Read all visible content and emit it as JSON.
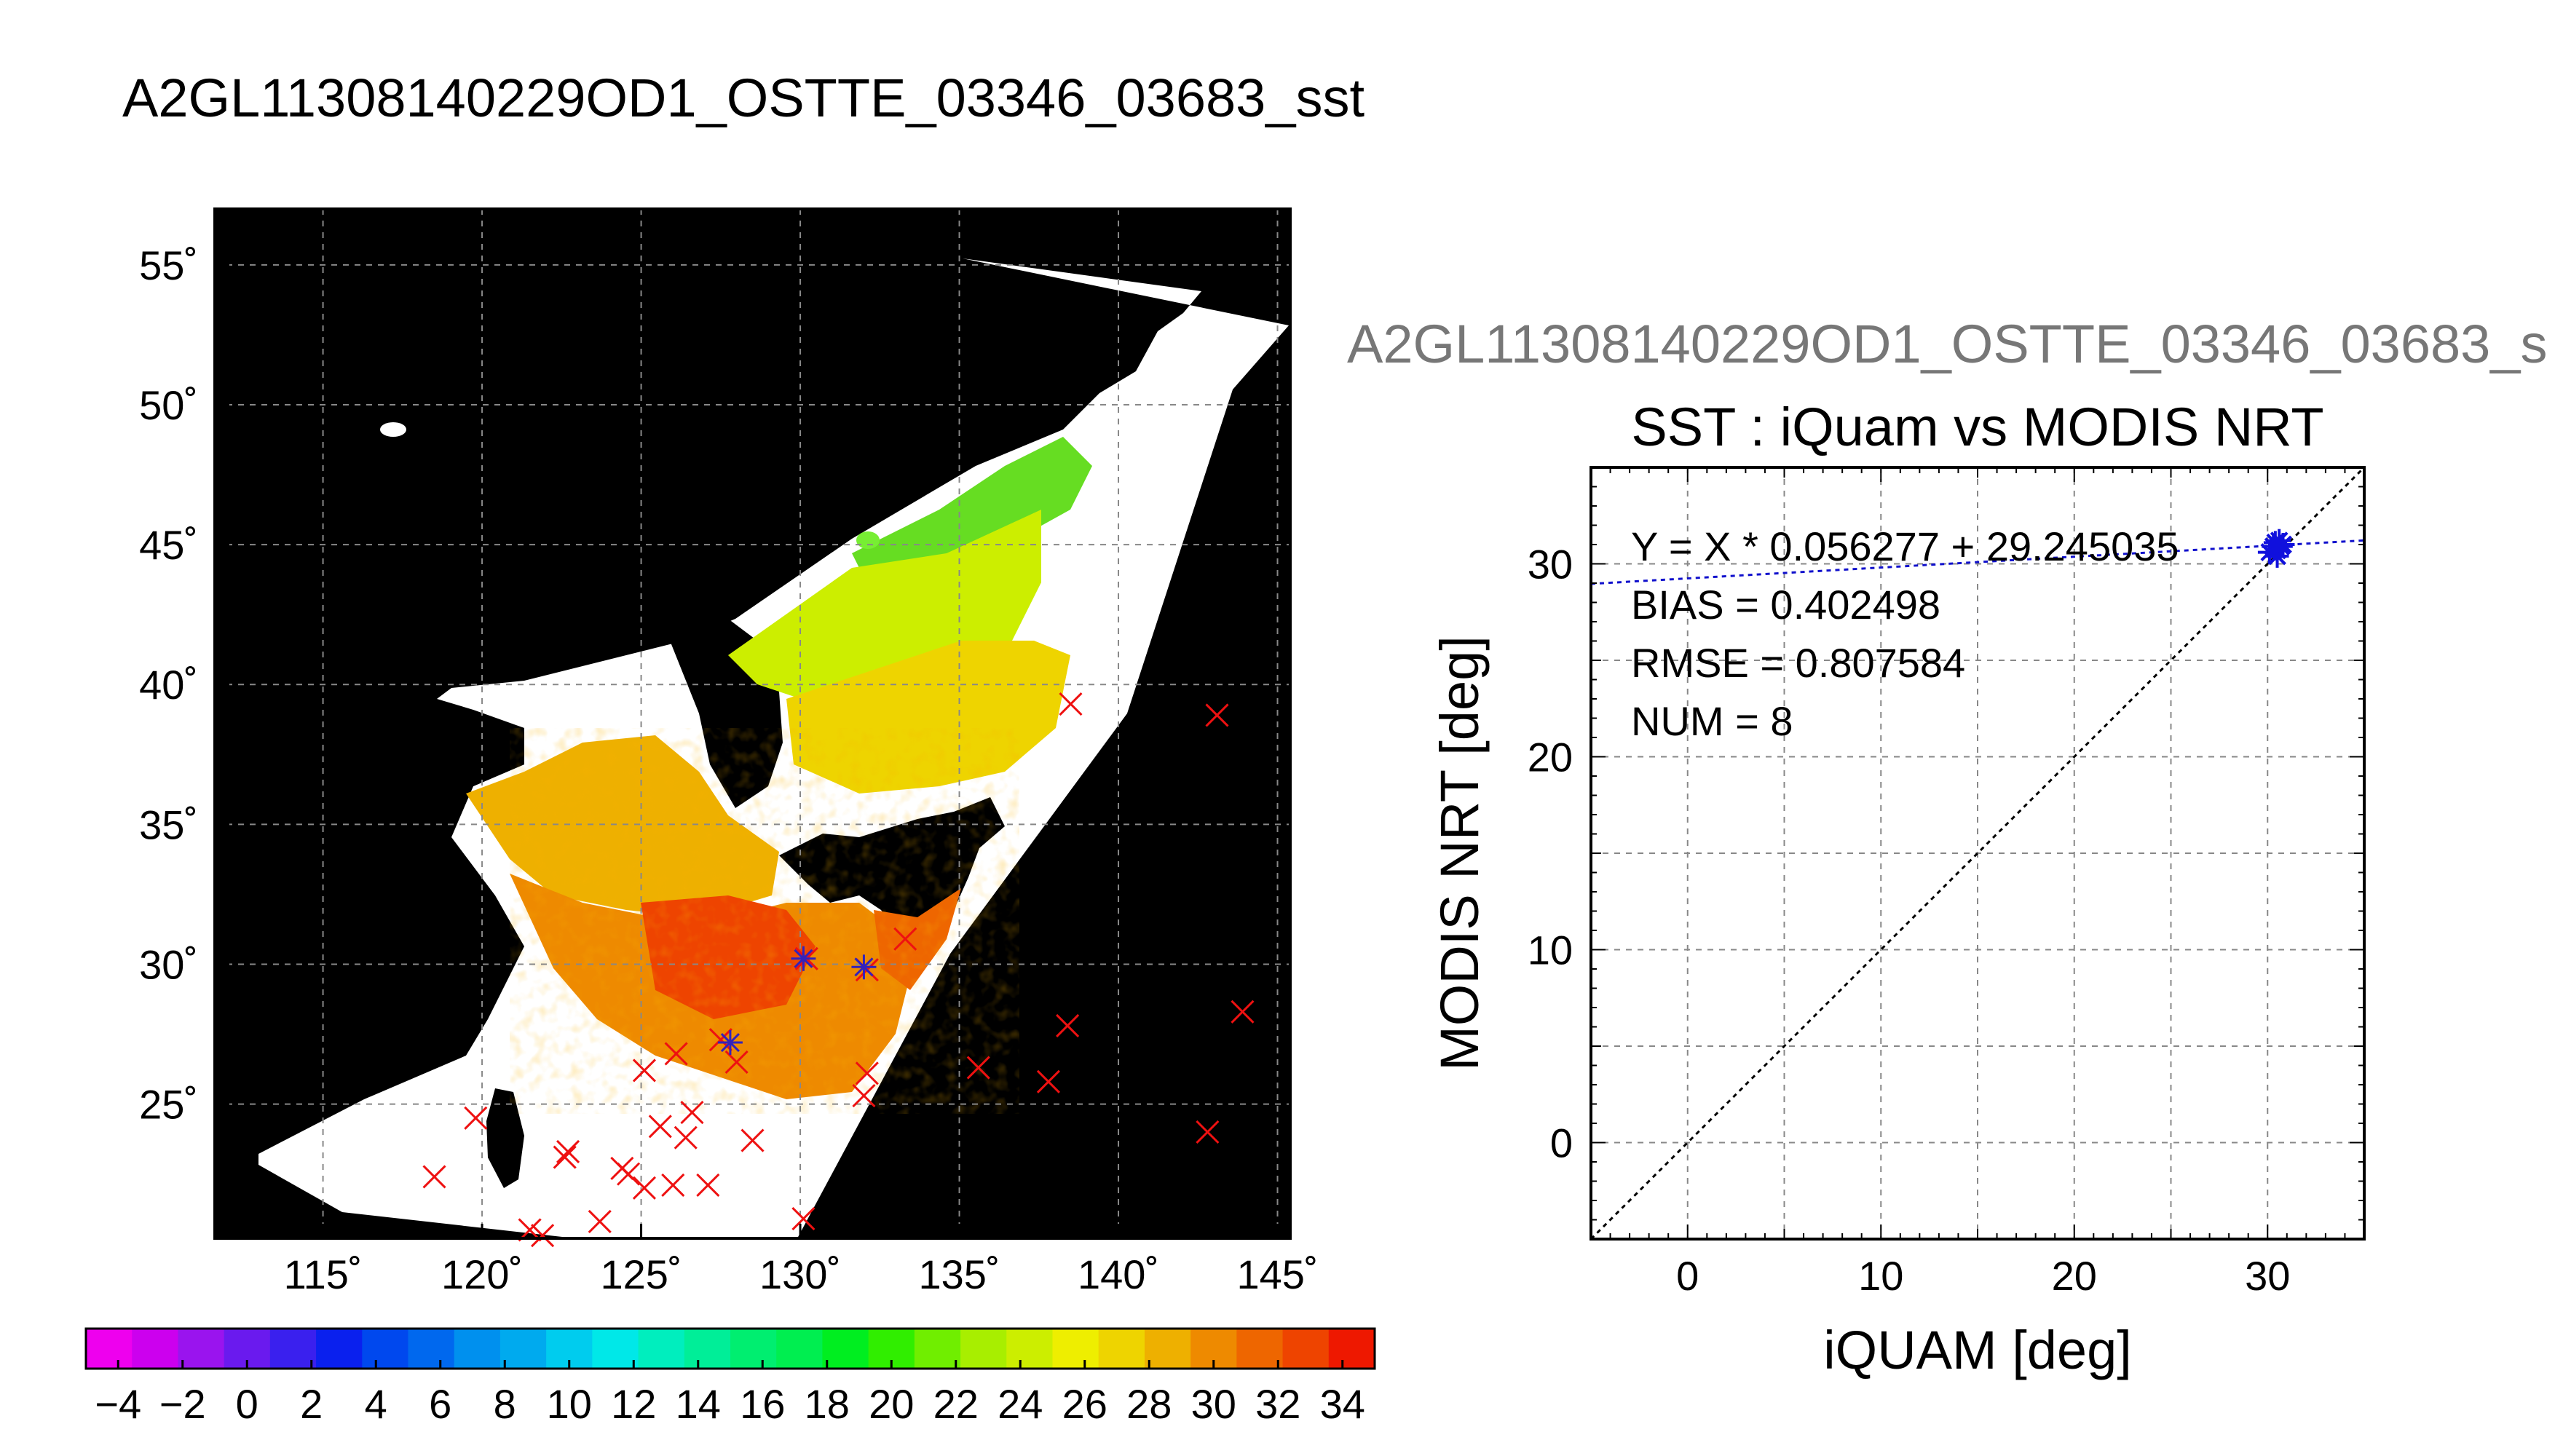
{
  "figure": {
    "title": "A2GL11308140229OD1_OSTTE_03346_03683_sst"
  },
  "chart_data": [
    {
      "type": "heatmap",
      "name": "sst-map",
      "x_ticks": [
        "115˚",
        "120˚",
        "125˚",
        "130˚",
        "135˚",
        "140˚",
        "145˚"
      ],
      "x_tick_values": [
        115,
        120,
        125,
        130,
        135,
        140,
        145
      ],
      "y_ticks": [
        "25˚",
        "30˚",
        "35˚",
        "40˚",
        "45˚",
        "50˚",
        "55˚"
      ],
      "y_tick_values": [
        25,
        30,
        35,
        40,
        45,
        50,
        55
      ],
      "xlim": [
        111.6,
        145.4
      ],
      "ylim": [
        20.2,
        57.0
      ],
      "grid": true,
      "colorbar": {
        "vmin": -5,
        "vmax": 35,
        "tick_labels": [
          "−4",
          "−2",
          "0",
          "2",
          "4",
          "6",
          "8",
          "10",
          "12",
          "14",
          "16",
          "18",
          "20",
          "22",
          "24",
          "26",
          "28",
          "30",
          "32",
          "34"
        ],
        "tick_values": [
          -4,
          -2,
          0,
          2,
          4,
          6,
          8,
          10,
          12,
          14,
          16,
          18,
          20,
          22,
          24,
          26,
          28,
          30,
          32,
          34
        ],
        "colors": [
          "#ee00ee",
          "#cc00ee",
          "#9a14ee",
          "#6a1aee",
          "#3a20ee",
          "#0a20ee",
          "#0048ee",
          "#0068ee",
          "#0090ee",
          "#00aaee",
          "#00ccee",
          "#00e8e8",
          "#00eebe",
          "#00ee98",
          "#00ee70",
          "#00ee50",
          "#00ee20",
          "#30ee00",
          "#70ee00",
          "#a8ee00",
          "#ccee00",
          "#eeee00",
          "#eed400",
          "#eeb000",
          "#ee8a00",
          "#ee6600",
          "#ee4400",
          "#ee1800"
        ]
      },
      "red_markers": [
        {
          "lon": 118.5,
          "lat": 22.4
        },
        {
          "lon": 119.8,
          "lat": 24.5
        },
        {
          "lon": 121.5,
          "lat": 20.5
        },
        {
          "lon": 121.9,
          "lat": 20.3
        },
        {
          "lon": 122.6,
          "lat": 23.1
        },
        {
          "lon": 122.7,
          "lat": 23.3
        },
        {
          "lon": 123.7,
          "lat": 20.8
        },
        {
          "lon": 124.4,
          "lat": 22.7
        },
        {
          "lon": 124.6,
          "lat": 22.5
        },
        {
          "lon": 125.1,
          "lat": 22.0
        },
        {
          "lon": 125.1,
          "lat": 26.2
        },
        {
          "lon": 125.6,
          "lat": 24.2
        },
        {
          "lon": 126.0,
          "lat": 22.1
        },
        {
          "lon": 126.1,
          "lat": 26.8
        },
        {
          "lon": 126.4,
          "lat": 23.8
        },
        {
          "lon": 126.6,
          "lat": 24.7
        },
        {
          "lon": 127.1,
          "lat": 22.1
        },
        {
          "lon": 127.5,
          "lat": 27.3
        },
        {
          "lon": 128.0,
          "lat": 26.5
        },
        {
          "lon": 128.5,
          "lat": 23.7
        },
        {
          "lon": 130.1,
          "lat": 20.9
        },
        {
          "lon": 130.2,
          "lat": 30.2
        },
        {
          "lon": 132.0,
          "lat": 25.3
        },
        {
          "lon": 132.1,
          "lat": 26.1
        },
        {
          "lon": 132.1,
          "lat": 29.8
        },
        {
          "lon": 133.3,
          "lat": 30.9
        },
        {
          "lon": 135.6,
          "lat": 26.3
        },
        {
          "lon": 137.8,
          "lat": 25.8
        },
        {
          "lon": 138.4,
          "lat": 27.8
        },
        {
          "lon": 138.5,
          "lat": 39.3
        },
        {
          "lon": 142.8,
          "lat": 24.0
        },
        {
          "lon": 143.1,
          "lat": 38.9
        },
        {
          "lon": 143.9,
          "lat": 28.3
        }
      ],
      "blue_markers": [
        {
          "lon": 127.8,
          "lat": 27.2
        },
        {
          "lon": 130.1,
          "lat": 30.2
        },
        {
          "lon": 132.0,
          "lat": 29.9
        }
      ]
    },
    {
      "type": "scatter",
      "name": "iquam-vs-modis",
      "header": "A2GL11308140229OD1_OSTTE_03346_03683_s",
      "title": "SST : iQuam vs MODIS NRT",
      "xlabel": "iQUAM [deg]",
      "ylabel": "MODIS NRT [deg]",
      "xlim": [
        -5,
        35
      ],
      "ylim": [
        -5,
        35
      ],
      "x_ticks": [
        0,
        10,
        20,
        30
      ],
      "y_ticks": [
        0,
        10,
        20,
        30
      ],
      "grid": true,
      "stats": {
        "fit": "Y = X * 0.056277 + 29.245035",
        "bias": "BIAS = 0.402498",
        "rmse": "RMSE = 0.807584",
        "num": "NUM = 8"
      },
      "fit_slope": 0.056277,
      "fit_intercept": 29.245035,
      "points": [
        {
          "x": 30.1,
          "y": 30.6
        },
        {
          "x": 30.3,
          "y": 30.9
        },
        {
          "x": 30.4,
          "y": 31.1
        },
        {
          "x": 30.5,
          "y": 30.7
        },
        {
          "x": 30.6,
          "y": 31.2
        },
        {
          "x": 30.7,
          "y": 30.9
        },
        {
          "x": 30.8,
          "y": 31.0
        },
        {
          "x": 30.5,
          "y": 30.4
        }
      ]
    }
  ]
}
